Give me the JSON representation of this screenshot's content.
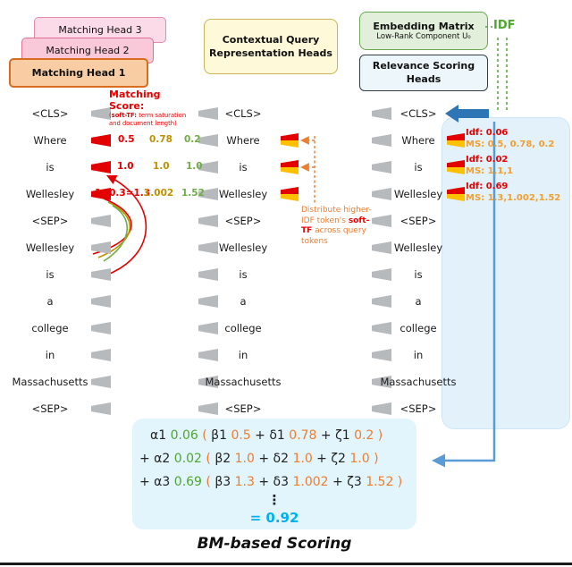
{
  "colors": {
    "idf_green": "#4ea72e",
    "matching_red": "#e30000",
    "soft_tf_yellow": "#ffc000",
    "olive": "#bf9000",
    "green": "#70ad47",
    "orange": "#ed7d31",
    "blue": "#2e75b6",
    "cyan": "#00b0f0"
  },
  "heads": {
    "matching_head_3": "Matching Head 3",
    "matching_head_2": "Matching Head 2",
    "matching_head_1": "Matching Head 1",
    "contextual_line1": "Contextual Query",
    "contextual_line2": "Representation Heads",
    "embedding_title": "Embedding Matrix",
    "embedding_sub": "Low-Rank Component U₀",
    "relevance_line1": "Relevance Scoring",
    "relevance_line2": "Heads",
    "idf_label": "IDF"
  },
  "tokens": [
    "<CLS>",
    "Where",
    "is",
    "Wellesley",
    "<SEP>",
    "Wellesley",
    "is",
    "a",
    "college",
    "in",
    "Massachusetts",
    "<SEP>"
  ],
  "matching_score": {
    "title": "Matching Score:",
    "subtitle_segments": [
      {
        "t": "(",
        "c": "r"
      },
      {
        "t": "soft-TF:",
        "c": "rb"
      },
      {
        "t": " term saturation and document length)",
        "c": "r"
      }
    ]
  },
  "left_scores": {
    "where": [
      "0.5",
      "0.78",
      "0.2"
    ],
    "is": [
      "1.0",
      "1.0",
      "1.0"
    ],
    "wellesley": [
      "1+0.3=1.3",
      "1.002",
      "1.52"
    ]
  },
  "distribute_note_segments": [
    {
      "t": "Distribute higher-IDF token's ",
      "c": "o"
    },
    {
      "t": "soft-TF",
      "c": "rb"
    },
    {
      "t": " across query tokens",
      "c": "o"
    }
  ],
  "right_panel": {
    "rows": [
      {
        "idf": "Idf: 0.06",
        "ms": "MS: 0.5, 0.78, 0.2"
      },
      {
        "idf": "Idf: 0.02",
        "ms": "MS: 1,1,1"
      },
      {
        "idf": "Idf: 0.69",
        "ms": "MS: 1.3,1.002,1.52"
      }
    ]
  },
  "formula": {
    "line1_segments": [
      {
        "t": "α1 ",
        "c": "k"
      },
      {
        "t": "0.06",
        "c": "g"
      },
      {
        "t": " ( ",
        "c": "o"
      },
      {
        "t": "β1 ",
        "c": "k"
      },
      {
        "t": "0.5",
        "c": "o"
      },
      {
        "t": " + ",
        "c": "k"
      },
      {
        "t": "δ1 ",
        "c": "k"
      },
      {
        "t": "0.78",
        "c": "o"
      },
      {
        "t": " + ",
        "c": "k"
      },
      {
        "t": "ζ1 ",
        "c": "k"
      },
      {
        "t": "0.2",
        "c": "o"
      },
      {
        "t": " )",
        "c": "o"
      }
    ],
    "line2_segments": [
      {
        "t": "+ α2 ",
        "c": "k"
      },
      {
        "t": "0.02",
        "c": "g"
      },
      {
        "t": " ( ",
        "c": "o"
      },
      {
        "t": "β2 ",
        "c": "k"
      },
      {
        "t": "1.0",
        "c": "o"
      },
      {
        "t": " + ",
        "c": "k"
      },
      {
        "t": "δ2 ",
        "c": "k"
      },
      {
        "t": "1.0",
        "c": "o"
      },
      {
        "t": " + ",
        "c": "k"
      },
      {
        "t": "ζ2 ",
        "c": "k"
      },
      {
        "t": "1.0",
        "c": "o"
      },
      {
        "t": " )",
        "c": "o"
      }
    ],
    "line3_segments": [
      {
        "t": "+ α3 ",
        "c": "k"
      },
      {
        "t": "0.69",
        "c": "g"
      },
      {
        "t": " ( ",
        "c": "o"
      },
      {
        "t": "β3 ",
        "c": "k"
      },
      {
        "t": "1.3",
        "c": "o"
      },
      {
        "t": " + ",
        "c": "k"
      },
      {
        "t": "δ3 ",
        "c": "k"
      },
      {
        "t": "1.002",
        "c": "o"
      },
      {
        "t": " + ",
        "c": "k"
      },
      {
        "t": "ζ3 ",
        "c": "k"
      },
      {
        "t": "1.52",
        "c": "o"
      },
      {
        "t": " )",
        "c": "o"
      }
    ],
    "vdots": "⋮",
    "result_segments": [
      {
        "t": "= 0.92",
        "c": "c"
      }
    ]
  },
  "caption": "BM-based Scoring"
}
